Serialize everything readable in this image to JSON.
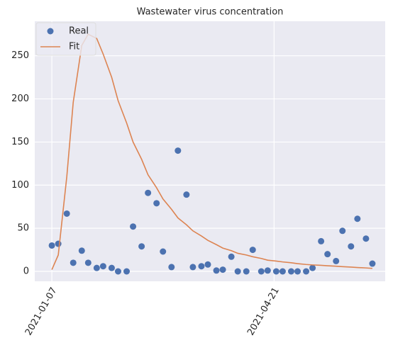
{
  "chart_data": {
    "type": "line",
    "title": "Wastewater virus concentration",
    "x": [
      "2021-01-07",
      "2021-01-10",
      "2021-01-14",
      "2021-01-17",
      "2021-01-21",
      "2021-01-24",
      "2021-01-28",
      "2021-01-31",
      "2021-02-04",
      "2021-02-07",
      "2021-02-11",
      "2021-02-14",
      "2021-02-18",
      "2021-02-21",
      "2021-02-25",
      "2021-02-28",
      "2021-03-04",
      "2021-03-07",
      "2021-03-11",
      "2021-03-14",
      "2021-03-18",
      "2021-03-21",
      "2021-03-25",
      "2021-03-28",
      "2021-04-01",
      "2021-04-04",
      "2021-04-08",
      "2021-04-11",
      "2021-04-15",
      "2021-04-18",
      "2021-04-22",
      "2021-04-25",
      "2021-04-29",
      "2021-05-02",
      "2021-05-06",
      "2021-05-09",
      "2021-05-13",
      "2021-05-16",
      "2021-05-20",
      "2021-05-23",
      "2021-05-27",
      "2021-05-30",
      "2021-06-03",
      "2021-06-06"
    ],
    "series": [
      {
        "name": "Real",
        "color": "#4c72b0",
        "style": "marker",
        "values": [
          30,
          32,
          67,
          10,
          24,
          10,
          4,
          6,
          4,
          0,
          0,
          52,
          29,
          91,
          79,
          23,
          5,
          140,
          89,
          5,
          6,
          8,
          1,
          2,
          17,
          0,
          0,
          25,
          0,
          1,
          0,
          0,
          0,
          0,
          0,
          4,
          35,
          20,
          12,
          47,
          29,
          61,
          38,
          9
        ]
      },
      {
        "name": "Fit",
        "color": "#dd8452",
        "style": "line",
        "values": [
          2,
          19,
          110,
          196,
          262,
          275,
          270,
          252,
          225,
          198,
          172,
          150,
          130,
          112,
          97,
          84,
          72,
          62,
          54,
          47,
          41,
          36,
          31,
          27,
          24,
          21,
          19,
          17,
          15,
          13,
          12,
          11,
          10,
          9,
          8,
          7.5,
          7,
          6.5,
          6,
          5.5,
          5,
          4.5,
          4,
          3.5
        ]
      }
    ],
    "xlim": [
      "2020-12-30",
      "2021-06-12"
    ],
    "xticks": [
      "2021-01-07",
      "2021-04-21"
    ],
    "ylim": [
      -11.5,
      290
    ],
    "yticks": [
      0,
      50,
      100,
      150,
      200,
      250
    ],
    "grid": true,
    "legend": "upper left"
  }
}
